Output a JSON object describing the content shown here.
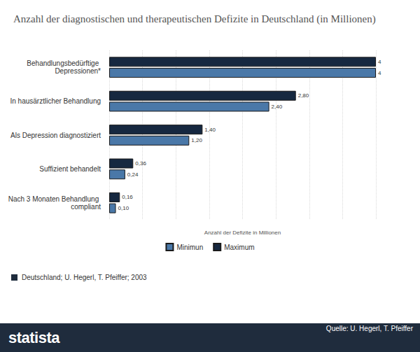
{
  "chart_data": {
    "type": "bar",
    "orientation": "horizontal",
    "title": "Anzahl der diagnostischen und therapeutischen Defizite in Deutschland (in Millionen)",
    "x_label": "Anzahl der Defizite in Millionen",
    "categories": [
      "Behandlungsbedürftige Depressionen*",
      "In hausärztlicher Behandlung",
      "Als Depression diagnostiziert",
      "Suffizient behandelt",
      "Nach 3 Monaten Behandlung compliant"
    ],
    "series": [
      {
        "name": "Minimun",
        "color": "#4a78a8",
        "values": [
          4,
          2.4,
          1.2,
          0.24,
          0.1
        ],
        "value_labels": [
          "4",
          "2,40",
          "1,20",
          "0,24",
          "0,10"
        ]
      },
      {
        "name": "Maximum",
        "color": "#162840",
        "values": [
          4,
          2.8,
          1.4,
          0.36,
          0.16
        ],
        "value_labels": [
          "4",
          "2,80",
          "1,40",
          "0,36",
          "0,16"
        ]
      }
    ],
    "xlim": [
      0,
      4
    ],
    "xticks": [
      0,
      0.5,
      1,
      1.5,
      2,
      2.5,
      3,
      3.5,
      4
    ],
    "grid": true,
    "legend": "bottom",
    "data_labels": true,
    "tick_labels": "y",
    "note": "Deutschland; U. Hegerl, T. Pfeiffer; 2003",
    "source": "Quelle: U. Hegerl, T. Pfeiffer",
    "logo": "statista"
  }
}
